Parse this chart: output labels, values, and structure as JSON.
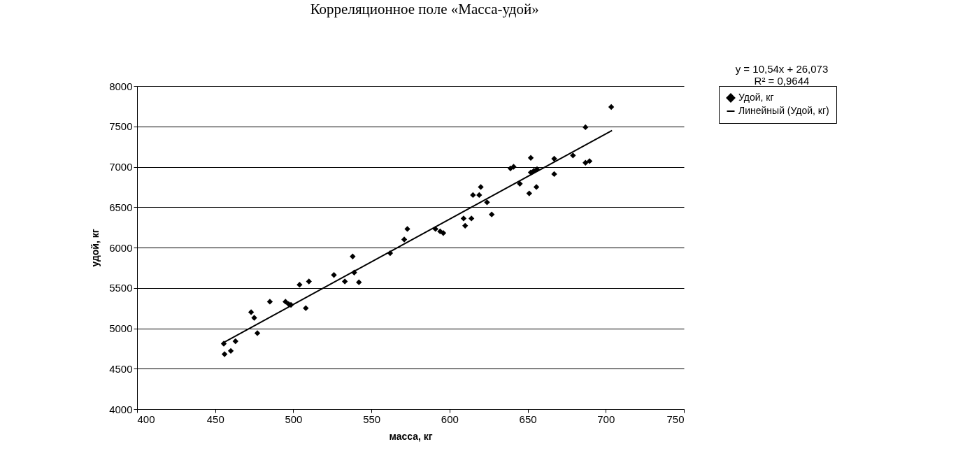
{
  "chart_data": {
    "type": "scatter",
    "title": "Корреляционное поле «Масса-удой»",
    "xlabel": "масса, кг",
    "ylabel": "удой, кг",
    "annotations": [
      "y = 10,54x + 26,073",
      "R² = 0,9644"
    ],
    "xlim": [
      400,
      750
    ],
    "xticks": [
      400,
      450,
      500,
      550,
      600,
      650,
      700,
      750
    ],
    "ylim": [
      4000,
      8000
    ],
    "yticks": [
      4000,
      4500,
      5000,
      5500,
      6000,
      6500,
      7000,
      7500,
      8000
    ],
    "grid": "y",
    "legend": "right",
    "series": [
      {
        "name": "Удой, кг",
        "color": "#000000",
        "marker": "diamond",
        "x": [
          455.5,
          456,
          460,
          463,
          473,
          475,
          477,
          485,
          495,
          497,
          498.5,
          504,
          508,
          510,
          526,
          533,
          538,
          539,
          542,
          562,
          571,
          573,
          591,
          594,
          596,
          609,
          610,
          614,
          615,
          619,
          620,
          624,
          627,
          639,
          641,
          645,
          651,
          652,
          652,
          654,
          655.6,
          656,
          667,
          667,
          679,
          687,
          687,
          689.6,
          703.5
        ],
        "values": [
          4810,
          4680,
          4720,
          4840,
          5200,
          5130,
          4940,
          5330,
          5330,
          5300,
          5290,
          5540,
          5250,
          5580,
          5660,
          5580,
          5890,
          5690,
          5570,
          5930,
          6100,
          6230,
          6230,
          6200,
          6180,
          6360,
          6270,
          6360,
          6650,
          6650,
          6750,
          6560,
          6410,
          6980,
          7000,
          6790,
          6670,
          7110,
          6930,
          6950,
          6750,
          6970,
          7100,
          6910,
          7140,
          7490,
          7050,
          7070,
          7740
        ]
      },
      {
        "name": "Линейный (Удой, кг)",
        "color": "#000000",
        "type": "line",
        "line_style": "solid",
        "x": [
          455,
          704
        ],
        "values": [
          4820,
          7450
        ]
      }
    ]
  }
}
